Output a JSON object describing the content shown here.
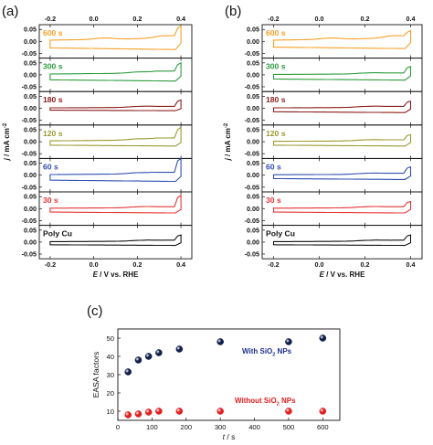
{
  "chart_data": [
    {
      "type": "line",
      "panel_label": "(a)",
      "top_x_ticks": [
        "-0.2",
        "0.0",
        "0.2",
        "0.4"
      ],
      "bottom_x_ticks": [
        "-0.2",
        "0.0",
        "0.2",
        "0.4"
      ],
      "y_ticks": [
        "0.05",
        "0.00",
        "-0.05"
      ],
      "xlim": [
        -0.25,
        0.45
      ],
      "ylim": [
        -0.07,
        0.07
      ],
      "xlabel": {
        "italic": "E",
        "rest": " / V vs. RHE"
      },
      "ylabel": {
        "italic": "j",
        "rest": " / mA cm",
        "sup": "-2"
      },
      "subplots": [
        {
          "label": "600 s",
          "color": "#f5a028",
          "cv": {
            "xmin": -0.2,
            "xmax": 0.4,
            "top": 0.012,
            "bottom": -0.034,
            "vertex": 0.065,
            "hump_x": 0.05,
            "hump_h": 0.006
          }
        },
        {
          "label": "300 s",
          "color": "#2e9c3e",
          "cv": {
            "xmin": -0.2,
            "xmax": 0.4,
            "top": 0.008,
            "bottom": -0.026,
            "vertex": 0.05,
            "hump_x": 0.2,
            "hump_h": 0.004
          }
        },
        {
          "label": "180 s",
          "color": "#8b1c1c",
          "cv": {
            "xmin": -0.2,
            "xmax": 0.4,
            "top": 0.004,
            "bottom": -0.01,
            "vertex": 0.035,
            "hump_x": 0.2,
            "hump_h": 0.003
          }
        },
        {
          "label": "120 s",
          "color": "#9a9a30",
          "cv": {
            "xmin": -0.2,
            "xmax": 0.4,
            "top": 0.008,
            "bottom": -0.018,
            "vertex": 0.06,
            "hump_x": 0.2,
            "hump_h": 0.004
          }
        },
        {
          "label": "60 s",
          "color": "#2f4fb0",
          "cv": {
            "xmin": -0.2,
            "xmax": 0.4,
            "top": 0.006,
            "bottom": -0.026,
            "vertex": 0.07,
            "hump_x": 0.2,
            "hump_h": 0.004
          }
        },
        {
          "label": "30 s",
          "color": "#e33434",
          "cv": {
            "xmin": -0.2,
            "xmax": 0.4,
            "top": 0.004,
            "bottom": -0.018,
            "vertex": 0.055,
            "hump_x": 0.2,
            "hump_h": 0.003
          }
        },
        {
          "label": "Poly Cu",
          "color": "#111111",
          "cv": {
            "xmin": -0.2,
            "xmax": 0.4,
            "top": 0.004,
            "bottom": -0.014,
            "vertex": 0.03,
            "hump_x": 0.2,
            "hump_h": 0.002
          }
        }
      ]
    },
    {
      "type": "line",
      "panel_label": "(b)",
      "top_x_ticks": [
        "-0.2",
        "0.0",
        "0.2",
        "0.4"
      ],
      "bottom_x_ticks": [
        "-0.2",
        "0.0",
        "0.2",
        "0.4"
      ],
      "y_ticks": [
        "0.05",
        "0.00",
        "-0.05"
      ],
      "xlim": [
        -0.25,
        0.45
      ],
      "ylim": [
        -0.07,
        0.07
      ],
      "xlabel": {
        "italic": "E",
        "rest": " / V vs. RHE"
      },
      "ylabel": {
        "italic": "j",
        "rest": " / mA cm",
        "sup": "-2"
      },
      "subplots": [
        {
          "label": "600 s",
          "color": "#f5a028",
          "cv": {
            "xmin": -0.2,
            "xmax": 0.4,
            "top": 0.012,
            "bottom": -0.03,
            "vertex": 0.045,
            "hump_x": 0.05,
            "hump_h": 0.006
          }
        },
        {
          "label": "300 s",
          "color": "#2e9c3e",
          "cv": {
            "xmin": -0.2,
            "xmax": 0.4,
            "top": 0.004,
            "bottom": -0.022,
            "vertex": 0.035,
            "hump_x": 0.2,
            "hump_h": 0.003
          }
        },
        {
          "label": "180 s",
          "color": "#8b1c1c",
          "cv": {
            "xmin": -0.2,
            "xmax": 0.4,
            "top": 0.004,
            "bottom": -0.018,
            "vertex": 0.03,
            "hump_x": 0.2,
            "hump_h": 0.003
          }
        },
        {
          "label": "120 s",
          "color": "#9a9a30",
          "cv": {
            "xmin": -0.2,
            "xmax": 0.4,
            "top": 0.004,
            "bottom": -0.018,
            "vertex": 0.03,
            "hump_x": 0.2,
            "hump_h": 0.003
          }
        },
        {
          "label": "60 s",
          "color": "#2f4fb0",
          "cv": {
            "xmin": -0.2,
            "xmax": 0.4,
            "top": 0.004,
            "bottom": -0.018,
            "vertex": 0.035,
            "hump_x": 0.2,
            "hump_h": 0.003
          }
        },
        {
          "label": "30 s",
          "color": "#e33434",
          "cv": {
            "xmin": -0.2,
            "xmax": 0.4,
            "top": 0.004,
            "bottom": -0.018,
            "vertex": 0.03,
            "hump_x": 0.2,
            "hump_h": 0.003
          }
        },
        {
          "label": "Poly Cu",
          "color": "#111111",
          "cv": {
            "xmin": -0.2,
            "xmax": 0.4,
            "top": 0.004,
            "bottom": -0.014,
            "vertex": 0.03,
            "hump_x": 0.2,
            "hump_h": 0.002
          }
        }
      ]
    },
    {
      "type": "scatter",
      "panel_label": "(c)",
      "xlabel": {
        "italic": "t",
        "rest": " / s"
      },
      "ylabel": "EASA factors",
      "xlim": [
        0,
        650
      ],
      "ylim": [
        5,
        55
      ],
      "x_ticks": [
        "0",
        "100",
        "200",
        "300",
        "400",
        "500",
        "600"
      ],
      "y_ticks": [
        "10",
        "20",
        "30",
        "40",
        "50"
      ],
      "annotations": [
        {
          "text_before": "With SiO",
          "sub": "2",
          "text_after": " NPs",
          "color": "#1f2f8f"
        },
        {
          "text_before": "Without SiO",
          "sub": "2",
          "text_after": " NPs",
          "color": "#e02020"
        }
      ],
      "series": [
        {
          "name": "With SiO2 NPs",
          "color": "#0f1e4a",
          "x": [
            30,
            60,
            90,
            120,
            180,
            300,
            500,
            600
          ],
          "y": [
            31.5,
            38,
            40,
            42,
            44,
            48,
            48,
            50
          ]
        },
        {
          "name": "Without SiO2 NPs",
          "color": "#e02020",
          "x": [
            30,
            60,
            90,
            120,
            180,
            300,
            500,
            600
          ],
          "y": [
            8,
            8.5,
            9.5,
            10,
            10,
            10,
            10,
            10
          ]
        }
      ]
    }
  ]
}
